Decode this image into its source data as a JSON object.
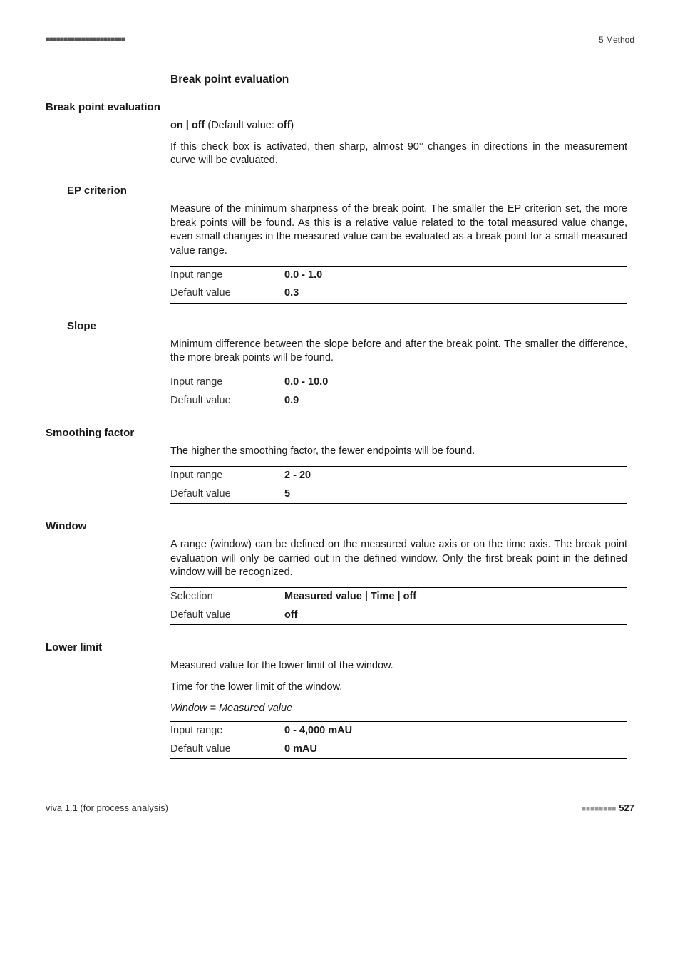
{
  "header": {
    "dots": "■■■■■■■■■■■■■■■■■■■■■■",
    "right": "5 Method"
  },
  "section_title": "Break point evaluation",
  "params": {
    "bpe": {
      "label": "Break point evaluation",
      "options": "on | off",
      "default_label": "(Default value:",
      "default_val": "off",
      "desc": "If this check box is activated, then sharp, almost 90° changes in directions in the measurement curve will be evaluated."
    },
    "ep": {
      "label": "EP criterion",
      "desc": "Measure of the minimum sharpness of the break point. The smaller the EP criterion set, the more break points will be found. As this is a relative value related to the total measured value change, even small changes in the measured value can be evaluated as a break point for a small measured value range.",
      "rows": [
        {
          "k": "Input range",
          "v": "0.0 - 1.0"
        },
        {
          "k": "Default value",
          "v": "0.3"
        }
      ]
    },
    "slope": {
      "label": "Slope",
      "desc": "Minimum difference between the slope before and after the break point. The smaller the difference, the more break points will be found.",
      "rows": [
        {
          "k": "Input range",
          "v": "0.0 - 10.0"
        },
        {
          "k": "Default value",
          "v": "0.9"
        }
      ]
    },
    "smooth": {
      "label": "Smoothing factor",
      "desc": "The higher the smoothing factor, the fewer endpoints will be found.",
      "rows": [
        {
          "k": "Input range",
          "v": "2 - 20"
        },
        {
          "k": "Default value",
          "v": "5"
        }
      ]
    },
    "window": {
      "label": "Window",
      "desc": "A range (window) can be defined on the measured value axis or on the time axis. The break point evaluation will only be carried out in the defined window. Only the first break point in the defined window will be recognized.",
      "rows": [
        {
          "k": "Selection",
          "v": "Measured value | Time | off"
        },
        {
          "k": "Default value",
          "v": "off"
        }
      ]
    },
    "lower": {
      "label": "Lower limit",
      "desc1": "Measured value for the lower limit of the window.",
      "desc2": "Time for the lower limit of the window.",
      "subhead": "Window = Measured value",
      "rows": [
        {
          "k": "Input range",
          "v": "0 - 4,000 mAU"
        },
        {
          "k": "Default value",
          "v": "0 mAU"
        }
      ]
    }
  },
  "footer": {
    "left": "viva 1.1 (for process analysis)",
    "dots": "■■■■■■■■",
    "page": "527"
  }
}
